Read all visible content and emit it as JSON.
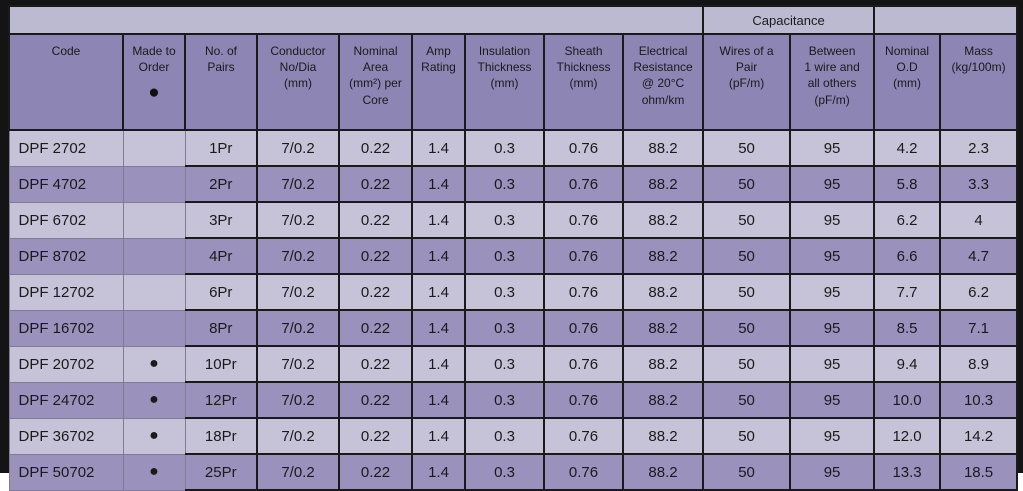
{
  "colors": {
    "frame_black": "#141414",
    "top_band_bg": "#bcbad0",
    "header_bg": "#8d85b3",
    "row_light_bg": "#c6c3d8",
    "row_dark_bg": "#9a92bd",
    "grid_gray": "#7f7c94",
    "grid_black": "#1a1a1a",
    "text": "#1a1a1a"
  },
  "capacitance_group": {
    "label": "Capacitance"
  },
  "table": {
    "columns": [
      {
        "id": "code",
        "label": "Code"
      },
      {
        "id": "made_to_order",
        "label": "Made to\nOrder",
        "bullet": "●"
      },
      {
        "id": "pairs",
        "label": "No. of\nPairs"
      },
      {
        "id": "conductor",
        "label": "Conductor\nNo/Dia\n(mm)"
      },
      {
        "id": "nominal_area",
        "label": "Nominal\nArea\n(mm²) per\nCore"
      },
      {
        "id": "amp_rating",
        "label": "Amp\nRating"
      },
      {
        "id": "insulation",
        "label": "Insulation\nThickness\n(mm)"
      },
      {
        "id": "sheath",
        "label": "Sheath\nThickness\n(mm)"
      },
      {
        "id": "resistance",
        "label": "Electrical\nResistance\n@ 20°C\nohm/km"
      },
      {
        "id": "cap_pair",
        "label": "Wires of a\nPair\n(pF/m)"
      },
      {
        "id": "cap_others",
        "label": "Between\n1 wire and\nall others\n(pF/m)"
      },
      {
        "id": "nominal_od",
        "label": "Nominal\nO.D\n(mm)"
      },
      {
        "id": "mass",
        "label": "Mass\n(kg/100m)"
      }
    ],
    "rows": [
      [
        "DPF 2702",
        "",
        "1Pr",
        "7/0.2",
        "0.22",
        "1.4",
        "0.3",
        "0.76",
        "88.2",
        "50",
        "95",
        "4.2",
        "2.3"
      ],
      [
        "DPF 4702",
        "",
        "2Pr",
        "7/0.2",
        "0.22",
        "1.4",
        "0.3",
        "0.76",
        "88.2",
        "50",
        "95",
        "5.8",
        "3.3"
      ],
      [
        "DPF 6702",
        "",
        "3Pr",
        "7/0.2",
        "0.22",
        "1.4",
        "0.3",
        "0.76",
        "88.2",
        "50",
        "95",
        "6.2",
        "4"
      ],
      [
        "DPF 8702",
        "",
        "4Pr",
        "7/0.2",
        "0.22",
        "1.4",
        "0.3",
        "0.76",
        "88.2",
        "50",
        "95",
        "6.6",
        "4.7"
      ],
      [
        "DPF 12702",
        "",
        "6Pr",
        "7/0.2",
        "0.22",
        "1.4",
        "0.3",
        "0.76",
        "88.2",
        "50",
        "95",
        "7.7",
        "6.2"
      ],
      [
        "DPF 16702",
        "",
        "8Pr",
        "7/0.2",
        "0.22",
        "1.4",
        "0.3",
        "0.76",
        "88.2",
        "50",
        "95",
        "8.5",
        "7.1"
      ],
      [
        "DPF 20702",
        "●",
        "10Pr",
        "7/0.2",
        "0.22",
        "1.4",
        "0.3",
        "0.76",
        "88.2",
        "50",
        "95",
        "9.4",
        "8.9"
      ],
      [
        "DPF 24702",
        "●",
        "12Pr",
        "7/0.2",
        "0.22",
        "1.4",
        "0.3",
        "0.76",
        "88.2",
        "50",
        "95",
        "10.0",
        "10.3"
      ],
      [
        "DPF 36702",
        "●",
        "18Pr",
        "7/0.2",
        "0.22",
        "1.4",
        "0.3",
        "0.76",
        "88.2",
        "50",
        "95",
        "12.0",
        "14.2"
      ],
      [
        "DPF 50702",
        "●",
        "25Pr",
        "7/0.2",
        "0.22",
        "1.4",
        "0.3",
        "0.76",
        "88.2",
        "50",
        "95",
        "13.3",
        "18.5"
      ]
    ]
  }
}
